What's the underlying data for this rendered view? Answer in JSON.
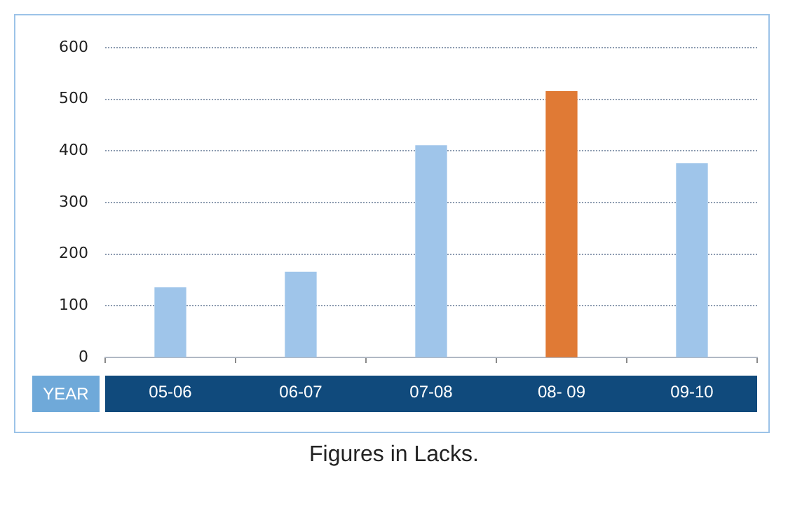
{
  "chart_data": {
    "type": "bar",
    "xlabel": "YEAR",
    "categories": [
      "05-06",
      "06-07",
      "07-08",
      "08- 09",
      "09-10"
    ],
    "values": [
      135,
      165,
      410,
      515,
      375
    ],
    "colors": [
      "#9fc5ea",
      "#9fc5ea",
      "#9fc5ea",
      "#e07a35",
      "#9fc5ea"
    ],
    "ylim": [
      0,
      600
    ],
    "yticks": [
      0,
      100,
      200,
      300,
      400,
      500,
      600
    ],
    "grid": "y",
    "legend": false,
    "annotations": [
      "Figures in Lacks."
    ]
  }
}
